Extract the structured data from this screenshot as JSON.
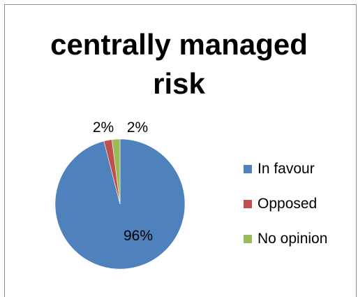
{
  "chart_data": {
    "type": "pie",
    "title": "centrally managed risk",
    "title_lines": [
      "centrally managed",
      "risk"
    ],
    "categories": [
      "In favour",
      "Opposed",
      "No opinion"
    ],
    "values": [
      96,
      2,
      2
    ],
    "labels": [
      "96%",
      "2%",
      "2%"
    ],
    "colors": [
      "#4f81bd",
      "#c0504d",
      "#9bbb59"
    ],
    "legend_position": "right"
  }
}
